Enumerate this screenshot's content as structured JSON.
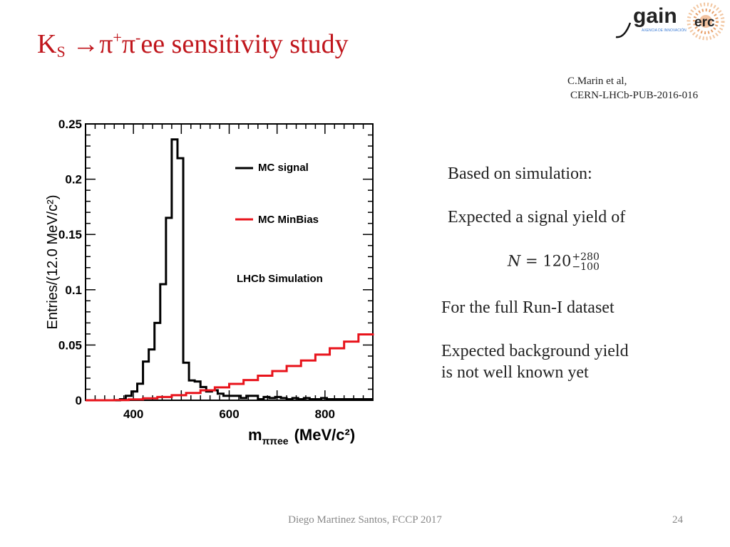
{
  "slide": {
    "title": {
      "k": "K",
      "k_sub": "S",
      "arrow": " →π",
      "plus": "+",
      "pi2": "π",
      "minus": "-",
      "rest": "ee sensitivity study"
    },
    "reference_line1": "C.Marin et al,",
    "reference_line2": "CERN-LHCb-PUB-2016-016",
    "logos": {
      "gain": "gain",
      "gain_tag": "AXENCIA DE INNOVACIÓN",
      "erc": "erc"
    },
    "text": {
      "based_on": "Based on simulation:",
      "expected_signal": "Expected a signal yield of",
      "formula_lhs": "𝑁 = 120",
      "formula_sup": "+280",
      "formula_sub": "−100",
      "full_run": "For the full Run-I dataset",
      "bkg_line1": "Expected background yield",
      "bkg_line2": "is not well known yet"
    },
    "footer": "Diego Martinez Santos, FCCP 2017",
    "page_number": "24"
  },
  "chart_data": {
    "type": "line",
    "ylabel": "Entries/(12.0 MeV/c²)",
    "xlabel_main": "m",
    "xlabel_sub": "ππee",
    "xlabel_unit": "(MeV/c²)",
    "xlim": [
      300,
      900
    ],
    "ylim": [
      0,
      0.25
    ],
    "xticks": [
      400,
      600,
      800
    ],
    "xtick_labels": [
      "400",
      "600",
      "800"
    ],
    "yticks": [
      0,
      0.05,
      0.1,
      0.15,
      0.2,
      0.25
    ],
    "ytick_labels": [
      "0",
      "0.05",
      "0.1",
      "0.15",
      "0.2",
      "0.25"
    ],
    "annotation": "LHCb Simulation",
    "legend_position": "top-right",
    "colors": {
      "signal": "#000000",
      "minbias": "#e8131b"
    },
    "series": [
      {
        "name": "MC signal",
        "style": "step",
        "bin_width": 12,
        "x": [
          300,
          312,
          324,
          336,
          348,
          360,
          372,
          384,
          396,
          408,
          420,
          432,
          444,
          456,
          468,
          480,
          492,
          504,
          516,
          528,
          540,
          552,
          564,
          576,
          588,
          600,
          612,
          624,
          636,
          648,
          660,
          672,
          684,
          696,
          708,
          720,
          732,
          744,
          756,
          768,
          780,
          792,
          804,
          816,
          828,
          840,
          852,
          864,
          876,
          888
        ],
        "values": [
          0,
          0,
          0,
          0,
          0,
          0,
          0.001,
          0.004,
          0.008,
          0.015,
          0.035,
          0.046,
          0.07,
          0.105,
          0.165,
          0.236,
          0.219,
          0.034,
          0.018,
          0.017,
          0.012,
          0.008,
          0.009,
          0.006,
          0.004,
          0.004,
          0.004,
          0.002,
          0.004,
          0.004,
          0.001,
          0.003,
          0.002,
          0.003,
          0.002,
          0.001,
          0.002,
          0.001,
          0.002,
          0.001,
          0.001,
          0.002,
          0.001,
          0.001,
          0.001,
          0.001,
          0.001,
          0.001,
          0.001,
          0.001
        ]
      },
      {
        "name": "MC MinBias",
        "style": "step",
        "x": [
          300,
          330,
          360,
          390,
          420,
          450,
          480,
          510,
          540,
          570,
          600,
          630,
          660,
          690,
          720,
          750,
          780,
          810,
          840,
          870,
          900
        ],
        "values": [
          0,
          0,
          0.0002,
          0.0008,
          0.0018,
          0.003,
          0.0046,
          0.0066,
          0.009,
          0.0117,
          0.0148,
          0.0183,
          0.0222,
          0.0264,
          0.031,
          0.036,
          0.0413,
          0.047,
          0.0531,
          0.0596,
          0.0605
        ]
      }
    ]
  }
}
